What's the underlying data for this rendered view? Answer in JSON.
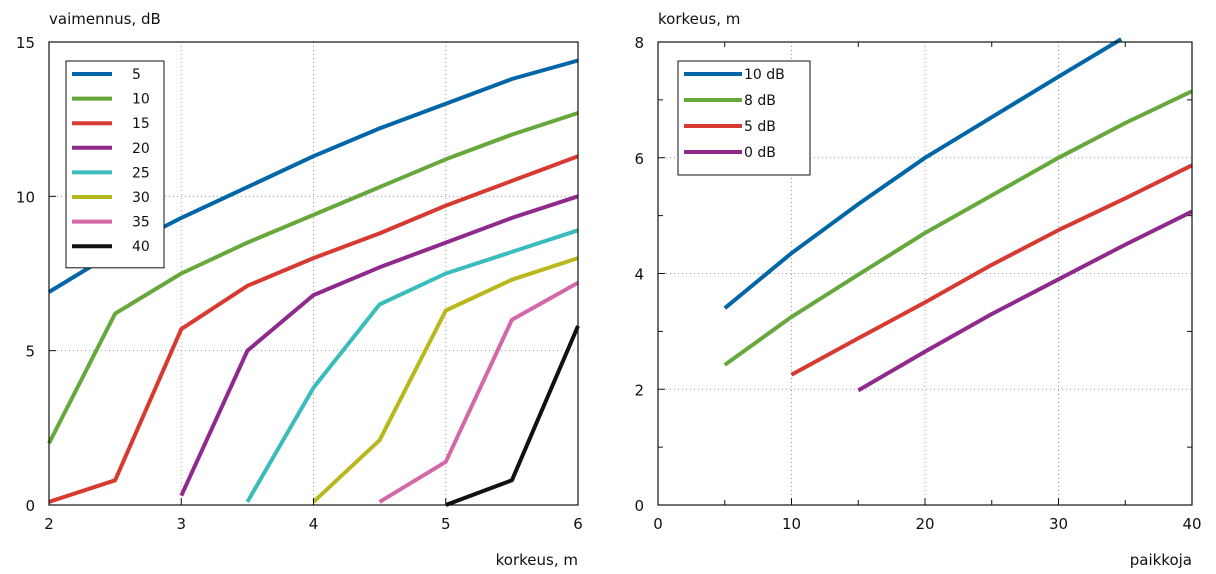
{
  "chart_data": [
    {
      "type": "line",
      "ylabel": "vaimennus, dB",
      "xlabel": "korkeus, m",
      "xlim": [
        2,
        6
      ],
      "ylim": [
        0,
        15
      ],
      "xticks": [
        2,
        3,
        4,
        5,
        6
      ],
      "yticks": [
        0,
        5,
        10,
        15
      ],
      "grid": true,
      "legend_position": "top-left",
      "series": [
        {
          "name": "5",
          "color": "#0066a8",
          "points": [
            [
              2,
              6.9
            ],
            [
              2.5,
              8.2
            ],
            [
              3,
              9.3
            ],
            [
              3.5,
              10.3
            ],
            [
              4,
              11.3
            ],
            [
              4.5,
              12.2
            ],
            [
              5,
              13.0
            ],
            [
              5.5,
              13.8
            ],
            [
              6,
              14.4
            ]
          ]
        },
        {
          "name": "10",
          "color": "#67a83c",
          "points": [
            [
              2,
              2.0
            ],
            [
              2.5,
              6.2
            ],
            [
              3,
              7.5
            ],
            [
              3.5,
              8.5
            ],
            [
              4,
              9.4
            ],
            [
              4.5,
              10.3
            ],
            [
              5,
              11.2
            ],
            [
              5.5,
              12.0
            ],
            [
              6,
              12.7
            ]
          ]
        },
        {
          "name": "15",
          "color": "#d73a31",
          "points": [
            [
              2,
              0.1
            ],
            [
              2.5,
              0.8
            ],
            [
              3,
              5.7
            ],
            [
              3.5,
              7.1
            ],
            [
              4,
              8.0
            ],
            [
              4.5,
              8.8
            ],
            [
              5,
              9.7
            ],
            [
              5.5,
              10.5
            ],
            [
              6,
              11.3
            ]
          ]
        },
        {
          "name": "20",
          "color": "#8f2a8c",
          "points": [
            [
              3,
              0.3
            ],
            [
              3.5,
              5.0
            ],
            [
              4,
              6.8
            ],
            [
              4.5,
              7.7
            ],
            [
              5,
              8.5
            ],
            [
              5.5,
              9.3
            ],
            [
              6,
              10.0
            ]
          ]
        },
        {
          "name": "25",
          "color": "#3bbcbc",
          "points": [
            [
              3.5,
              0.1
            ],
            [
              4,
              3.8
            ],
            [
              4.5,
              6.5
            ],
            [
              5,
              7.5
            ],
            [
              5.5,
              8.2
            ],
            [
              6,
              8.9
            ]
          ]
        },
        {
          "name": "30",
          "color": "#b8b81c",
          "points": [
            [
              4,
              0.1
            ],
            [
              4.5,
              2.1
            ],
            [
              5,
              6.3
            ],
            [
              5.5,
              7.3
            ],
            [
              6,
              8.0
            ]
          ]
        },
        {
          "name": "35",
          "color": "#d467a8",
          "points": [
            [
              4.5,
              0.1
            ],
            [
              5,
              1.4
            ],
            [
              5.5,
              6.0
            ],
            [
              6,
              7.2
            ]
          ]
        },
        {
          "name": "40",
          "color": "#111111",
          "points": [
            [
              5,
              0.0
            ],
            [
              5.5,
              0.8
            ],
            [
              6,
              5.8
            ]
          ]
        }
      ]
    },
    {
      "type": "line",
      "ylabel": "korkeus, m",
      "xlabel": "paikkoja",
      "xlim": [
        0,
        40
      ],
      "ylim": [
        0,
        8
      ],
      "xticks": [
        0,
        10,
        20,
        30,
        40
      ],
      "yticks": [
        0,
        2,
        4,
        6,
        8
      ],
      "grid": true,
      "legend_position": "top-left",
      "series": [
        {
          "name": "10 dB",
          "color": "#0066a8",
          "points": [
            [
              5,
              3.4
            ],
            [
              10,
              4.35
            ],
            [
              15,
              5.2
            ],
            [
              20,
              6.0
            ],
            [
              25,
              6.7
            ],
            [
              30,
              7.4
            ],
            [
              34.7,
              8.05
            ]
          ]
        },
        {
          "name": "8 dB",
          "color": "#67a83c",
          "points": [
            [
              5,
              2.42
            ],
            [
              10,
              3.25
            ],
            [
              15,
              3.98
            ],
            [
              20,
              4.7
            ],
            [
              25,
              5.35
            ],
            [
              30,
              6.0
            ],
            [
              35,
              6.6
            ],
            [
              40,
              7.15
            ]
          ]
        },
        {
          "name": "5 dB",
          "color": "#d73a31",
          "points": [
            [
              10,
              2.25
            ],
            [
              15,
              2.88
            ],
            [
              20,
              3.5
            ],
            [
              25,
              4.15
            ],
            [
              30,
              4.75
            ],
            [
              35,
              5.3
            ],
            [
              40,
              5.87
            ]
          ]
        },
        {
          "name": "0 dB",
          "color": "#8f2a8c",
          "points": [
            [
              15,
              1.98
            ],
            [
              20,
              2.65
            ],
            [
              25,
              3.3
            ],
            [
              30,
              3.9
            ],
            [
              35,
              4.5
            ],
            [
              40,
              5.07
            ]
          ]
        }
      ]
    }
  ]
}
